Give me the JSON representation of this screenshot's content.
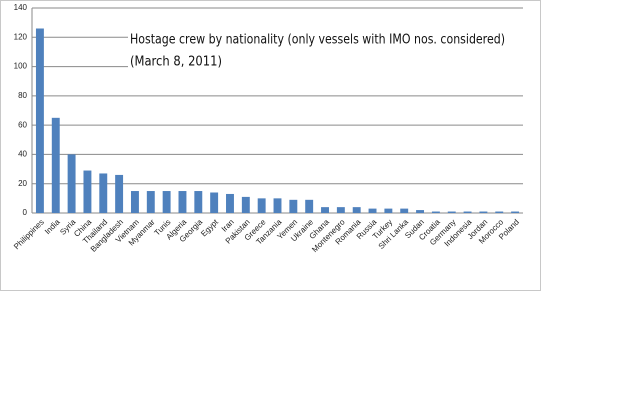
{
  "chart_data": {
    "type": "bar",
    "title": "Hostage crew by nationality (only vessels with IMO nos. considered)",
    "subtitle": "(March 8, 2011)",
    "categories": [
      "Philippines",
      "India",
      "Syria",
      "China",
      "Thailand",
      "Bangladesh",
      "Vietnam",
      "Myanmar",
      "Tunis",
      "Algeria",
      "Georgia",
      "Egypt",
      "Iran",
      "Pakistan",
      "Greece",
      "Tanzania",
      "Yemen",
      "Ukraine",
      "Ghana",
      "Montenegro",
      "Romania",
      "Russia",
      "Turkey",
      "Shri Lanka",
      "Sudan",
      "Croatia",
      "Germany",
      "Indonesia",
      "Jordan",
      "Morocco",
      "Poland"
    ],
    "values": [
      126,
      65,
      40,
      29,
      27,
      26,
      15,
      15,
      15,
      15,
      15,
      14,
      13,
      11,
      10,
      10,
      9,
      9,
      4,
      4,
      4,
      3,
      3,
      3,
      2,
      1,
      1,
      1,
      1,
      1,
      1
    ],
    "color": "#4f81bd",
    "ylim": [
      0,
      140
    ],
    "yticks": [
      0,
      20,
      40,
      60,
      80,
      100,
      120,
      140
    ],
    "grid": true
  }
}
